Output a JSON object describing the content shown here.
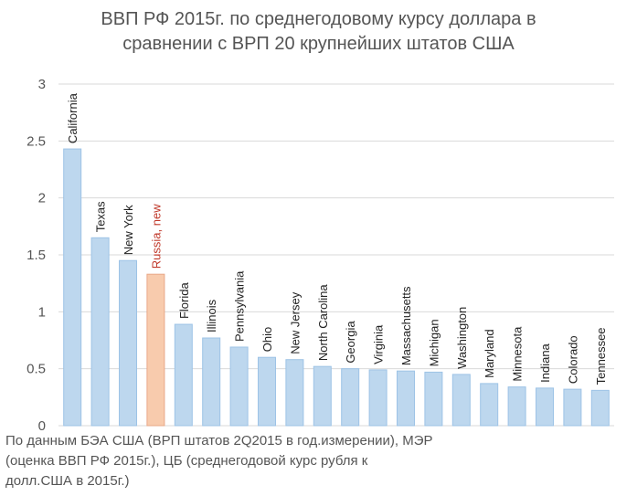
{
  "chart_data": {
    "type": "bar",
    "title": [
      "ВВП РФ 2015г. по среднегодовому курсу доллара в",
      "сравнении с ВРП 20 крупнейших штатов США"
    ],
    "categories": [
      "California",
      "Texas",
      "New York",
      "Russia, new",
      "Florida",
      "Illinois",
      "Pennsylvania",
      "Ohio",
      "New Jersey",
      "North Carolina",
      "Georgia",
      "Virginia",
      "Massachusetts",
      "Michigan",
      "Washington",
      "Maryland",
      "Minnesota",
      "Indiana",
      "Colorado",
      "Tennessee"
    ],
    "values": [
      2.43,
      1.65,
      1.45,
      1.33,
      0.89,
      0.77,
      0.69,
      0.6,
      0.58,
      0.52,
      0.5,
      0.49,
      0.48,
      0.47,
      0.45,
      0.37,
      0.34,
      0.33,
      0.32,
      0.31
    ],
    "highlight_category": "Russia, new",
    "ylim": [
      0,
      3
    ],
    "yticks": [
      "0",
      "0.5",
      "1",
      "1.5",
      "2",
      "2.5",
      "3"
    ],
    "grid": true,
    "colors": {
      "bar": "#bdd7ee",
      "bar_border": "#9dc3e6",
      "highlight": "#f8cbad",
      "highlight_border": "#e8a888",
      "label": "#222222",
      "highlight_label": "#c0392b",
      "grid": "#d9d9d9"
    }
  },
  "footnote": [
    "По данным БЭА США (ВРП штатов 2Q2015 в год.измерении),  МЭР",
    "(оценка ВВП РФ 2015г.), ЦБ (среднегодовой курс рубля к",
    "долл.США в 2015г.)"
  ]
}
